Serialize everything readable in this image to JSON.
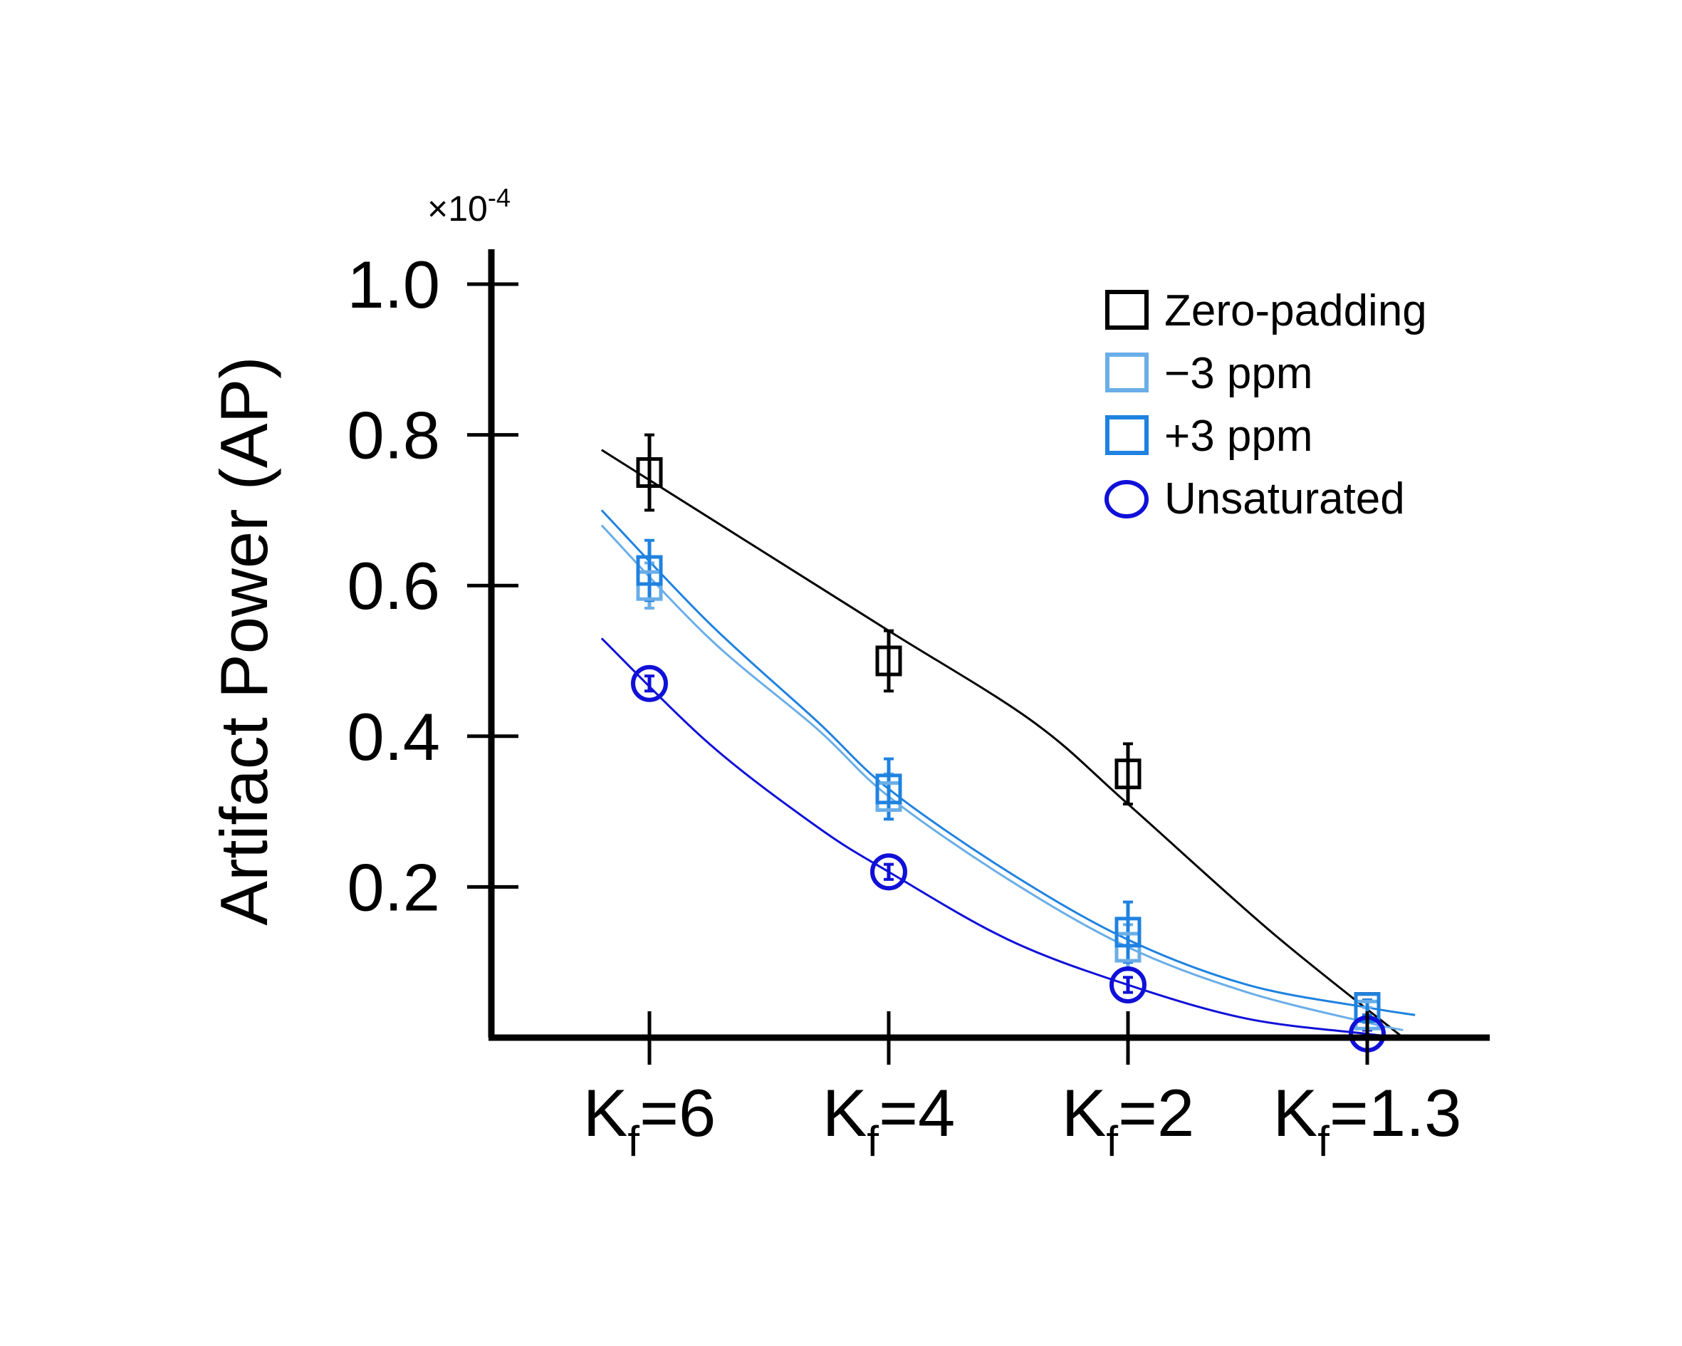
{
  "chart_data": {
    "type": "scatter",
    "title": "",
    "xlabel": "",
    "ylabel": "Artifact Power (AP)",
    "y_multiplier": "×10",
    "y_multiplier_exp": "-4",
    "ylim": [
      0.0,
      1.0
    ],
    "y_ticks": [
      "0.2",
      "0.4",
      "0.6",
      "0.8",
      "1.0"
    ],
    "categories": [
      {
        "base": "K",
        "sub": "f",
        "rest": "=6"
      },
      {
        "base": "K",
        "sub": "f",
        "rest": "=4"
      },
      {
        "base": "K",
        "sub": "f",
        "rest": "=2"
      },
      {
        "base": "K",
        "sub": "f",
        "rest": "=1.3"
      }
    ],
    "grid": false,
    "legend_position": "top-right",
    "series": [
      {
        "name": "Zero-padding",
        "marker": "square",
        "color": "#000000",
        "values": [
          0.75,
          0.5,
          0.35,
          0.04
        ],
        "errors": [
          0.05,
          0.04,
          0.04,
          0.01
        ],
        "fit": [
          [
            -0.2,
            0.78
          ],
          [
            0.4,
            0.66
          ],
          [
            1.0,
            0.54
          ],
          [
            1.6,
            0.42
          ],
          [
            2.0,
            0.31
          ],
          [
            2.6,
            0.14
          ],
          [
            3.15,
            0.0
          ]
        ]
      },
      {
        "name": "−3 ppm",
        "marker": "square",
        "color": "#6aaee8",
        "values": [
          0.6,
          0.32,
          0.12,
          0.03
        ],
        "errors": [
          0.03,
          0.03,
          0.03,
          0.01
        ],
        "fit": [
          [
            -0.2,
            0.68
          ],
          [
            0.25,
            0.53
          ],
          [
            0.7,
            0.41
          ],
          [
            1.0,
            0.32
          ],
          [
            1.5,
            0.21
          ],
          [
            2.0,
            0.12
          ],
          [
            2.5,
            0.06
          ],
          [
            3.0,
            0.02
          ],
          [
            3.15,
            0.01
          ]
        ]
      },
      {
        "name": "+3 ppm",
        "marker": "square",
        "color": "#1f82e0",
        "values": [
          0.62,
          0.33,
          0.14,
          0.04
        ],
        "errors": [
          0.04,
          0.04,
          0.04,
          0.01
        ],
        "fit": [
          [
            -0.2,
            0.7
          ],
          [
            0.25,
            0.55
          ],
          [
            0.7,
            0.42
          ],
          [
            1.0,
            0.33
          ],
          [
            1.5,
            0.22
          ],
          [
            2.0,
            0.13
          ],
          [
            2.5,
            0.07
          ],
          [
            3.0,
            0.04
          ],
          [
            3.2,
            0.03
          ]
        ]
      },
      {
        "name": "Unsaturated",
        "marker": "circle",
        "color": "#1010d8",
        "values": [
          0.47,
          0.22,
          0.07,
          0.005
        ],
        "errors": [
          0.01,
          0.01,
          0.01,
          0.005
        ],
        "fit": [
          [
            -0.2,
            0.53
          ],
          [
            0.25,
            0.39
          ],
          [
            0.7,
            0.28
          ],
          [
            1.0,
            0.22
          ],
          [
            1.5,
            0.13
          ],
          [
            2.0,
            0.07
          ],
          [
            2.5,
            0.025
          ],
          [
            3.0,
            0.005
          ],
          [
            3.15,
            0.0
          ]
        ]
      }
    ]
  }
}
